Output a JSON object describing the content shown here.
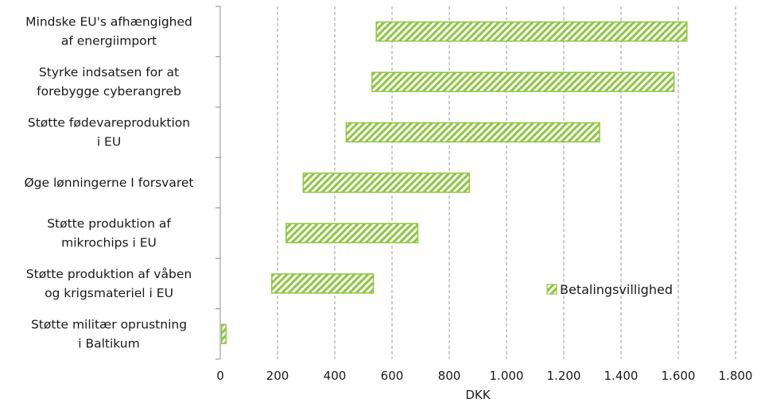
{
  "chart_data": {
    "type": "bar",
    "orientation": "horizontal-floating",
    "xlabel": "DKK",
    "ylabel": "",
    "xlim": [
      0,
      1800
    ],
    "x_ticks": [
      0,
      200,
      400,
      600,
      800,
      1000,
      1200,
      1400,
      1600,
      1800
    ],
    "x_tick_labels": [
      "0",
      "200",
      "400",
      "600",
      "800",
      "1.000",
      "1.200",
      "1.400",
      "1.600",
      "1.800"
    ],
    "grid": "vertical dashed",
    "legend_position": "lower-right",
    "series": [
      {
        "name": "Betalingsvillighed",
        "color": "#8dc63f",
        "pattern": "diagonal-hatch",
        "items": [
          {
            "category": [
              "Mindske EU's afhængighed",
              "af energiimport"
            ],
            "low": 545,
            "high": 1630
          },
          {
            "category": [
              "Styrke indsatsen for at",
              "forebygge cyberangreb"
            ],
            "low": 530,
            "high": 1585
          },
          {
            "category": [
              "Støtte fødevareproduktion",
              "i EU"
            ],
            "low": 440,
            "high": 1325
          },
          {
            "category": [
              "Øge lønningerne I forsvaret"
            ],
            "low": 290,
            "high": 870
          },
          {
            "category": [
              "Støtte produktion af",
              "mikrochips i EU"
            ],
            "low": 230,
            "high": 690
          },
          {
            "category": [
              "Støtte produktion af våben",
              "og krigsmateriel i EU"
            ],
            "low": 180,
            "high": 535
          },
          {
            "category": [
              "Støtte militær oprustning",
              "i Baltikum"
            ],
            "low": 5,
            "high": 20
          }
        ]
      }
    ]
  }
}
